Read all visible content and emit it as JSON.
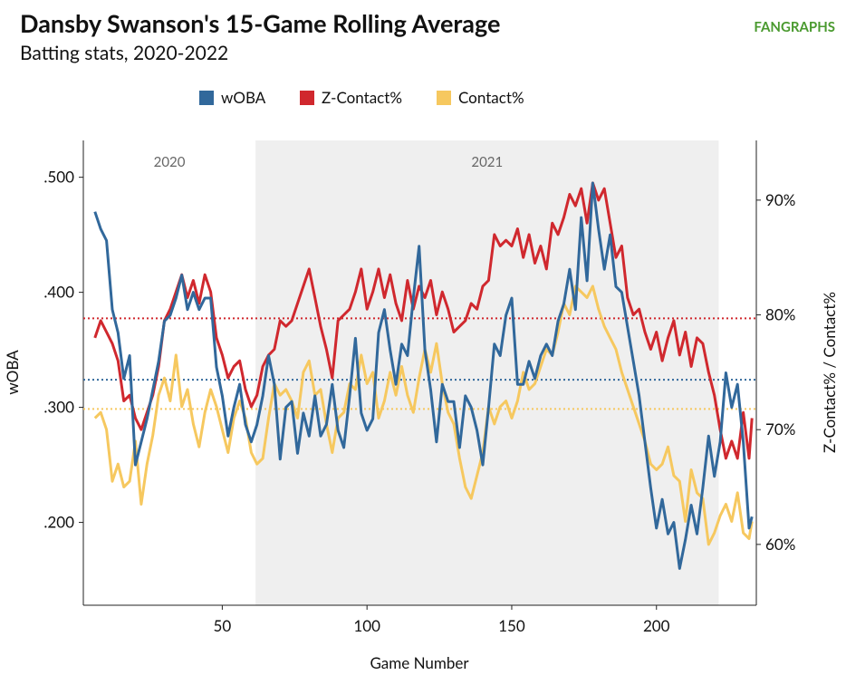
{
  "chart_data": {
    "type": "line",
    "title": "Dansby Swanson's 15-Game Rolling Average",
    "subtitle": "Batting stats, 2020-2022",
    "logo": "FANGRAPHS",
    "xlabel": "Game Number",
    "ylabel": "wOBA",
    "y2label": "Z-Contact% / Contact%",
    "xlim": [
      2,
      234.5
    ],
    "xticks": [
      50,
      100,
      150,
      200
    ],
    "ylim": [
      0.128,
      0.532
    ],
    "yticks": [
      {
        "value": 0.2,
        "label": ".200"
      },
      {
        "value": 0.3,
        "label": ".300"
      },
      {
        "value": 0.4,
        "label": ".400"
      },
      {
        "value": 0.5,
        "label": ".500"
      }
    ],
    "y2lim": [
      54.7,
      95.2
    ],
    "y2ticks": [
      {
        "value": 60,
        "label": "60%"
      },
      {
        "value": 70,
        "label": "70%"
      },
      {
        "value": 80,
        "label": "80%"
      },
      {
        "value": 90,
        "label": "90%"
      }
    ],
    "seasons": [
      {
        "label": "2020",
        "start": 2,
        "end": 61.5,
        "shaded": false
      },
      {
        "label": "2021",
        "start": 61.5,
        "end": 221.5,
        "shaded": true
      }
    ],
    "x": [
      6,
      8,
      10,
      12,
      14,
      16,
      18,
      20,
      22,
      24,
      26,
      28,
      30,
      32,
      34,
      36,
      38,
      40,
      42,
      44,
      46,
      48,
      50,
      52,
      54,
      56,
      58,
      60,
      62,
      64,
      66,
      68,
      70,
      72,
      74,
      76,
      78,
      80,
      82,
      84,
      86,
      88,
      90,
      92,
      94,
      96,
      98,
      100,
      102,
      104,
      106,
      108,
      110,
      112,
      114,
      116,
      118,
      120,
      122,
      124,
      126,
      128,
      130,
      132,
      134,
      136,
      138,
      140,
      142,
      144,
      146,
      148,
      150,
      152,
      154,
      156,
      158,
      160,
      162,
      164,
      166,
      168,
      170,
      172,
      174,
      176,
      178,
      180,
      182,
      184,
      186,
      188,
      190,
      192,
      194,
      196,
      198,
      200,
      202,
      204,
      206,
      208,
      210,
      212,
      214,
      216,
      218,
      220,
      222,
      224,
      226,
      228,
      230,
      232,
      233
    ],
    "series": [
      {
        "name": "wOBA",
        "color": "#31689b",
        "axis": "y",
        "average": 0.324,
        "values": [
          0.47,
          0.455,
          0.445,
          0.385,
          0.365,
          0.325,
          0.345,
          0.25,
          0.27,
          0.29,
          0.315,
          0.34,
          0.375,
          0.38,
          0.395,
          0.415,
          0.385,
          0.4,
          0.385,
          0.395,
          0.395,
          0.335,
          0.31,
          0.275,
          0.3,
          0.32,
          0.285,
          0.27,
          0.285,
          0.31,
          0.345,
          0.32,
          0.255,
          0.3,
          0.305,
          0.26,
          0.295,
          0.275,
          0.31,
          0.275,
          0.285,
          0.32,
          0.28,
          0.265,
          0.31,
          0.36,
          0.295,
          0.28,
          0.29,
          0.365,
          0.385,
          0.35,
          0.32,
          0.355,
          0.345,
          0.395,
          0.44,
          0.35,
          0.315,
          0.27,
          0.32,
          0.305,
          0.305,
          0.265,
          0.31,
          0.3,
          0.28,
          0.25,
          0.3,
          0.355,
          0.345,
          0.38,
          0.395,
          0.32,
          0.32,
          0.34,
          0.325,
          0.345,
          0.355,
          0.345,
          0.375,
          0.39,
          0.42,
          0.385,
          0.465,
          0.41,
          0.495,
          0.455,
          0.42,
          0.45,
          0.405,
          0.4,
          0.37,
          0.34,
          0.31,
          0.27,
          0.23,
          0.195,
          0.22,
          0.19,
          0.2,
          0.16,
          0.185,
          0.215,
          0.19,
          0.23,
          0.275,
          0.24,
          0.27,
          0.33,
          0.3,
          0.32,
          0.27,
          0.195,
          0.205
        ]
      },
      {
        "name": "Z-Contact%",
        "color": "#d0282e",
        "axis": "y2",
        "average": 79.7,
        "values": [
          78.0,
          79.5,
          78.5,
          77.5,
          76.0,
          72.5,
          73.0,
          71.0,
          70.0,
          71.5,
          73.0,
          75.5,
          79.5,
          80.5,
          82.0,
          83.5,
          81.5,
          83.0,
          81.0,
          83.5,
          82.0,
          78.0,
          76.5,
          74.5,
          75.5,
          76.0,
          73.5,
          72.0,
          73.0,
          75.5,
          76.5,
          77.0,
          79.5,
          79.0,
          79.5,
          81.0,
          82.5,
          84.0,
          81.5,
          79.0,
          77.0,
          74.5,
          79.5,
          80.0,
          80.5,
          82.0,
          84.0,
          80.5,
          82.0,
          84.0,
          81.5,
          83.5,
          81.0,
          79.5,
          83.0,
          80.5,
          82.5,
          81.5,
          83.0,
          80.0,
          82.0,
          80.5,
          78.5,
          79.0,
          79.5,
          81.0,
          80.5,
          82.5,
          83.0,
          87.0,
          86.0,
          86.5,
          86.0,
          87.5,
          85.0,
          87.0,
          84.5,
          86.0,
          84.0,
          88.0,
          87.0,
          88.5,
          90.5,
          89.5,
          91.0,
          88.0,
          91.5,
          90.0,
          91.0,
          88.0,
          85.0,
          86.0,
          81.5,
          80.0,
          80.5,
          78.5,
          77.0,
          78.5,
          76.0,
          78.0,
          79.5,
          76.5,
          78.5,
          75.5,
          78.0,
          77.5,
          75.0,
          73.0,
          70.0,
          67.5,
          69.0,
          67.5,
          71.5,
          67.5,
          71.0
        ]
      },
      {
        "name": "Contact%",
        "color": "#f6c85f",
        "axis": "y2",
        "average": 71.8,
        "values": [
          71.0,
          71.5,
          70.0,
          65.5,
          67.0,
          65.0,
          65.5,
          69.0,
          63.5,
          67.0,
          69.5,
          73.0,
          74.5,
          72.5,
          76.5,
          72.0,
          73.5,
          70.5,
          68.5,
          71.5,
          73.5,
          72.0,
          70.0,
          68.0,
          71.0,
          72.5,
          71.0,
          68.0,
          67.0,
          67.5,
          71.0,
          74.0,
          73.0,
          73.5,
          72.5,
          71.0,
          75.0,
          76.0,
          73.0,
          73.5,
          70.5,
          68.0,
          71.0,
          71.5,
          74.0,
          73.5,
          76.5,
          74.0,
          75.0,
          71.0,
          72.5,
          75.0,
          73.0,
          75.5,
          73.0,
          71.5,
          74.5,
          77.0,
          75.0,
          77.5,
          74.0,
          71.5,
          70.5,
          67.5,
          65.0,
          64.0,
          66.0,
          68.0,
          72.0,
          70.5,
          72.0,
          72.5,
          71.0,
          72.5,
          75.0,
          73.5,
          74.0,
          75.5,
          77.0,
          76.5,
          78.5,
          81.0,
          80.0,
          82.5,
          82.0,
          81.5,
          82.5,
          80.5,
          79.0,
          78.0,
          77.0,
          75.0,
          73.5,
          72.0,
          70.5,
          69.0,
          67.0,
          66.5,
          67.0,
          68.5,
          66.0,
          65.5,
          62.0,
          66.5,
          64.5,
          64.0,
          60.0,
          61.0,
          62.5,
          63.5,
          62.0,
          64.5,
          61.0,
          60.5,
          62.0
        ]
      }
    ]
  }
}
